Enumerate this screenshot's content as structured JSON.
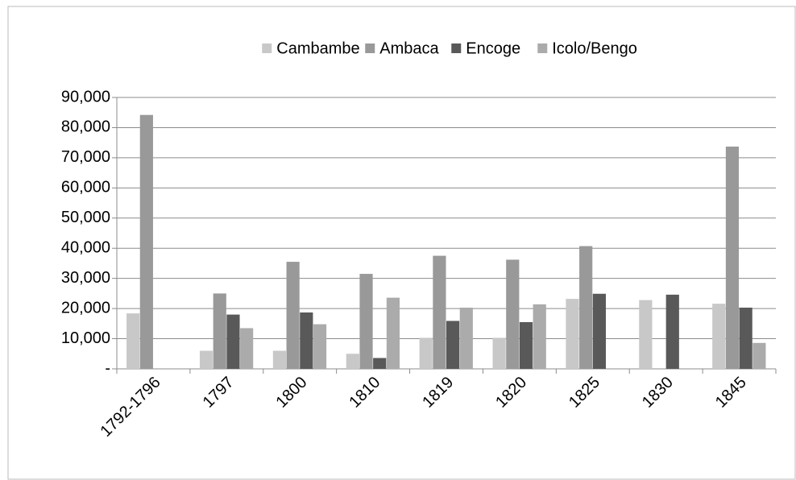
{
  "chart_data": {
    "type": "bar",
    "categories": [
      "1792-1796",
      "1797",
      "1800",
      "1810",
      "1819",
      "1820",
      "1825",
      "1830",
      "1845"
    ],
    "series": [
      {
        "name": "Cambambe",
        "color": "#c8c8c8",
        "values": [
          18400,
          6000,
          6000,
          5000,
          10300,
          10300,
          23200,
          22800,
          21600
        ]
      },
      {
        "name": "Ambaca",
        "color": "#999999",
        "values": [
          84200,
          25000,
          35500,
          31500,
          37500,
          36200,
          40700,
          null,
          73700
        ]
      },
      {
        "name": "Encoge",
        "color": "#595959",
        "values": [
          null,
          18000,
          18700,
          3600,
          15900,
          15500,
          24900,
          24600,
          20300
        ]
      },
      {
        "name": "Icolo/Bengo",
        "color": "#ababab",
        "values": [
          null,
          13500,
          14800,
          23600,
          20300,
          21400,
          null,
          null,
          8600
        ]
      }
    ],
    "ylim": [
      0,
      90000
    ],
    "yticks": [
      {
        "value": 0,
        "label": "-"
      },
      {
        "value": 10000,
        "label": "10,000"
      },
      {
        "value": 20000,
        "label": "20,000"
      },
      {
        "value": 30000,
        "label": "30,000"
      },
      {
        "value": 40000,
        "label": "40,000"
      },
      {
        "value": 50000,
        "label": "50,000"
      },
      {
        "value": 60000,
        "label": "60,000"
      },
      {
        "value": 70000,
        "label": "70,000"
      },
      {
        "value": 80000,
        "label": "80,000"
      },
      {
        "value": 90000,
        "label": "90,000"
      }
    ],
    "grid": true,
    "legend": "top"
  }
}
